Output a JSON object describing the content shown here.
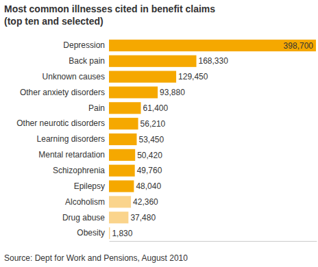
{
  "chart_data": {
    "type": "bar",
    "orientation": "horizontal",
    "title": "Most common illnesses cited in benefit claims",
    "subtitle": "(top ten and selected)",
    "source": "Source: Dept for Work and Pensions, August 2010",
    "categories": [
      "Depression",
      "Back pain",
      "Unknown causes",
      "Other anxiety disorders",
      "Pain",
      "Other neurotic disorders",
      "Learning disorders",
      "Mental retardation",
      "Schizophrenia",
      "Epilepsy",
      "Alcoholism",
      "Drug abuse",
      "Obesity"
    ],
    "values": [
      398700,
      168330,
      129450,
      93880,
      61400,
      56210,
      53450,
      50420,
      49760,
      48040,
      42360,
      37480,
      1830
    ],
    "value_labels": [
      "398,700",
      "168,330",
      "129,450",
      "93,880",
      "61,400",
      "56,210",
      "53,450",
      "50,420",
      "49,760",
      "48,040",
      "42,360",
      "37,480",
      "1,830"
    ],
    "colors": [
      "#f5a800",
      "#f5a800",
      "#f5a800",
      "#f5a800",
      "#f5a800",
      "#f5a800",
      "#f5a800",
      "#f5a800",
      "#f5a800",
      "#f5a800",
      "#fad48c",
      "#fad48c",
      "#fad48c"
    ],
    "xlim": [
      0,
      400000
    ],
    "data_labels": true,
    "tick_labels": "y",
    "grid": false
  }
}
